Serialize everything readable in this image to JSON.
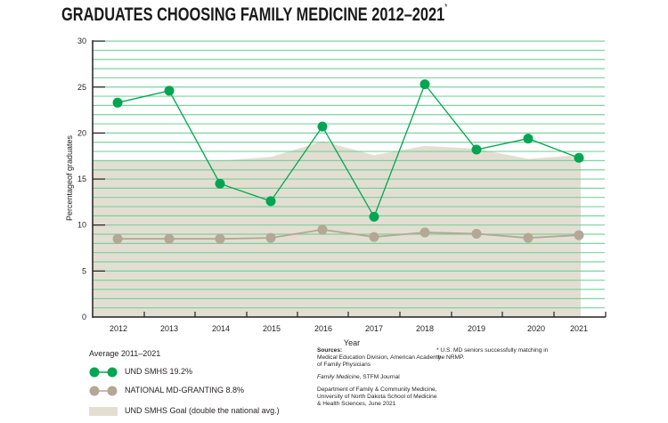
{
  "title": {
    "text": "GRADUATES CHOOSING FAMILY MEDICINE 2012–2021",
    "marker": "*"
  },
  "colors": {
    "und_line": "#00a651",
    "national_line": "#b3a796",
    "goal_area": "#e3ded2",
    "gridline": "#6fcf97",
    "axis": "#231f20"
  },
  "chart_data": {
    "type": "line",
    "title": "GRADUATES CHOOSING FAMILY MEDICINE 2012–2021*",
    "xlabel": "Year",
    "ylabel": "Percentageof graduates",
    "ylim": [
      0,
      30
    ],
    "yticks": [
      0,
      5,
      10,
      15,
      20,
      25,
      30
    ],
    "grid": "horizontal lines every 1 unit",
    "categories": [
      "2012",
      "2013",
      "2014",
      "2015",
      "2016",
      "2017",
      "2018",
      "2019",
      "2020",
      "2021"
    ],
    "series": [
      {
        "name": "UND SMHS",
        "kind": "line-markers",
        "values": [
          23.3,
          24.6,
          14.5,
          12.6,
          20.7,
          10.9,
          25.3,
          18.2,
          19.4,
          17.3
        ]
      },
      {
        "name": "NATIONAL MD-GRANTING",
        "kind": "line-markers",
        "values": [
          8.5,
          8.5,
          8.5,
          8.6,
          9.5,
          8.7,
          9.2,
          9.05,
          8.6,
          8.9
        ]
      },
      {
        "name": "UND SMHS Goal (double the national avg.)",
        "kind": "area",
        "values": [
          17.0,
          17.0,
          17.0,
          17.4,
          19.1,
          17.6,
          18.6,
          18.3,
          17.2,
          17.6
        ]
      }
    ],
    "legend_position": "bottom-left"
  },
  "legend": {
    "heading": "Average 2011–2021",
    "items": [
      {
        "label": "UND SMHS 19.2%"
      },
      {
        "label": "NATIONAL MD-GRANTING 8.8%"
      },
      {
        "label": "UND SMHS Goal (double the national avg.)"
      }
    ]
  },
  "sources": {
    "heading": "Sources:",
    "lines": [
      "Medical Education Division, American Academy of Family Physicians",
      "Family Medicine, STFM Journal",
      "Department of Family & Community Medicine, University of North Dakota School of Medicine & Health Sciences, June 2021"
    ],
    "italic_part": "Family Medicine",
    "rest_part": ", STFM Journal"
  },
  "footnote": "* U.S. MD seniors successfully matching in the NRMP."
}
